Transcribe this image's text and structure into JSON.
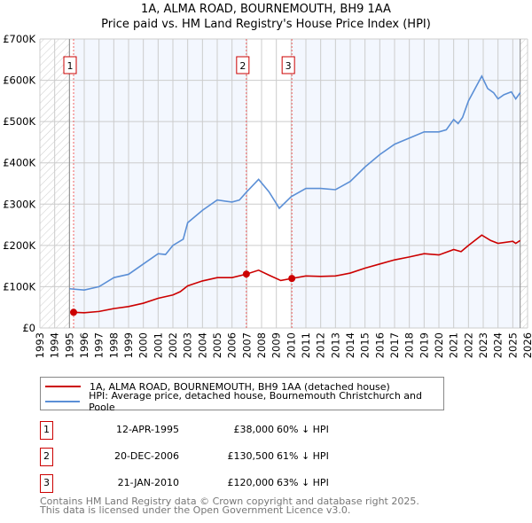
{
  "title_line1": "1A, ALMA ROAD, BOURNEMOUTH, BH9 1AA",
  "title_line2": "Price paid vs. HM Land Registry's House Price Index (HPI)",
  "chart_data": {
    "type": "line",
    "title": "1A, ALMA ROAD, BOURNEMOUTH, BH9 1AA — Price paid vs. HM Land Registry's House Price Index (HPI)",
    "xlim": [
      1993,
      2026
    ],
    "ylim": [
      0,
      700000
    ],
    "x_ticks": [
      "1993",
      "1994",
      "1995",
      "1996",
      "1997",
      "1998",
      "1999",
      "2000",
      "2001",
      "2002",
      "2003",
      "2004",
      "2005",
      "2006",
      "2007",
      "2008",
      "2009",
      "2010",
      "2011",
      "2012",
      "2013",
      "2014",
      "2015",
      "2016",
      "2017",
      "2018",
      "2019",
      "2020",
      "2021",
      "2022",
      "2023",
      "2024",
      "2025",
      "2026"
    ],
    "y_ticks": [
      {
        "v": 0,
        "label": "£0"
      },
      {
        "v": 100000,
        "label": "£100K"
      },
      {
        "v": 200000,
        "label": "£200K"
      },
      {
        "v": 300000,
        "label": "£300K"
      },
      {
        "v": 400000,
        "label": "£400K"
      },
      {
        "v": 500000,
        "label": "£500K"
      },
      {
        "v": 600000,
        "label": "£600K"
      },
      {
        "v": 700000,
        "label": "£700K"
      }
    ],
    "grid": true,
    "hatched_ranges": [
      [
        1993,
        1995.0
      ],
      [
        2025.5,
        2026
      ]
    ],
    "shaded_ranges": [
      [
        1995.28,
        2006.97
      ],
      [
        2010.05,
        2025.5
      ]
    ],
    "series": [
      {
        "name": "1A, ALMA ROAD, BOURNEMOUTH, BH9 1AA (detached house)",
        "color": "#cc0000",
        "points": [
          [
            1995.28,
            38000
          ],
          [
            1996,
            37000
          ],
          [
            1997,
            40000
          ],
          [
            1998,
            47000
          ],
          [
            1999,
            52000
          ],
          [
            2000,
            60000
          ],
          [
            2001,
            72000
          ],
          [
            2002,
            80000
          ],
          [
            2002.5,
            88000
          ],
          [
            2003,
            102000
          ],
          [
            2004,
            114000
          ],
          [
            2005,
            122000
          ],
          [
            2006,
            122000
          ],
          [
            2006.97,
            130500
          ],
          [
            2007.8,
            140000
          ],
          [
            2008.5,
            128000
          ],
          [
            2009.3,
            115000
          ],
          [
            2010.05,
            120000
          ],
          [
            2011,
            126000
          ],
          [
            2012,
            125000
          ],
          [
            2013,
            126000
          ],
          [
            2014,
            133000
          ],
          [
            2015,
            145000
          ],
          [
            2016,
            155000
          ],
          [
            2017,
            165000
          ],
          [
            2018,
            172000
          ],
          [
            2019,
            180000
          ],
          [
            2020,
            177000
          ],
          [
            2021,
            190000
          ],
          [
            2021.5,
            185000
          ],
          [
            2022,
            200000
          ],
          [
            2022.9,
            225000
          ],
          [
            2023.5,
            212000
          ],
          [
            2024,
            205000
          ],
          [
            2025,
            210000
          ],
          [
            2025.2,
            205000
          ],
          [
            2025.5,
            212000
          ]
        ]
      },
      {
        "name": "HPI: Average price, detached house, Bournemouth Christchurch and Poole",
        "color": "#5b8fd6",
        "points": [
          [
            1995.0,
            95000
          ],
          [
            1996,
            92000
          ],
          [
            1997,
            100000
          ],
          [
            1998,
            122000
          ],
          [
            1999,
            130000
          ],
          [
            2000,
            155000
          ],
          [
            2001,
            180000
          ],
          [
            2001.5,
            178000
          ],
          [
            2002,
            200000
          ],
          [
            2002.7,
            215000
          ],
          [
            2003,
            255000
          ],
          [
            2004,
            285000
          ],
          [
            2005,
            310000
          ],
          [
            2006,
            305000
          ],
          [
            2006.5,
            310000
          ],
          [
            2007,
            330000
          ],
          [
            2007.8,
            360000
          ],
          [
            2008.5,
            330000
          ],
          [
            2009.2,
            290000
          ],
          [
            2010,
            318000
          ],
          [
            2011,
            338000
          ],
          [
            2012,
            338000
          ],
          [
            2013,
            335000
          ],
          [
            2014,
            355000
          ],
          [
            2015,
            390000
          ],
          [
            2016,
            420000
          ],
          [
            2017,
            445000
          ],
          [
            2018,
            460000
          ],
          [
            2019,
            475000
          ],
          [
            2020,
            475000
          ],
          [
            2020.5,
            480000
          ],
          [
            2021,
            505000
          ],
          [
            2021.3,
            495000
          ],
          [
            2021.6,
            510000
          ],
          [
            2022,
            550000
          ],
          [
            2022.9,
            610000
          ],
          [
            2023.3,
            580000
          ],
          [
            2023.7,
            570000
          ],
          [
            2024,
            555000
          ],
          [
            2024.4,
            565000
          ],
          [
            2024.9,
            572000
          ],
          [
            2025.2,
            555000
          ],
          [
            2025.5,
            570000
          ]
        ]
      }
    ],
    "sales": [
      {
        "id": "1",
        "x": 1995.28,
        "y": 38000
      },
      {
        "id": "2",
        "x": 2006.97,
        "y": 130500
      },
      {
        "id": "3",
        "x": 2010.05,
        "y": 120000
      }
    ]
  },
  "legend": {
    "property": "1A, ALMA ROAD, BOURNEMOUTH, BH9 1AA (detached house)",
    "hpi": "HPI: Average price, detached house, Bournemouth Christchurch and Poole"
  },
  "transactions": [
    {
      "id": "1",
      "date": "12-APR-1995",
      "price": "£38,000",
      "pct": "60% ↓ HPI"
    },
    {
      "id": "2",
      "date": "20-DEC-2006",
      "price": "£130,500",
      "pct": "61% ↓ HPI"
    },
    {
      "id": "3",
      "date": "21-JAN-2010",
      "price": "£120,000",
      "pct": "63% ↓ HPI"
    }
  ],
  "footer_line1": "Contains HM Land Registry data © Crown copyright and database right 2025.",
  "footer_line2": "This data is licensed under the Open Government Licence v3.0."
}
